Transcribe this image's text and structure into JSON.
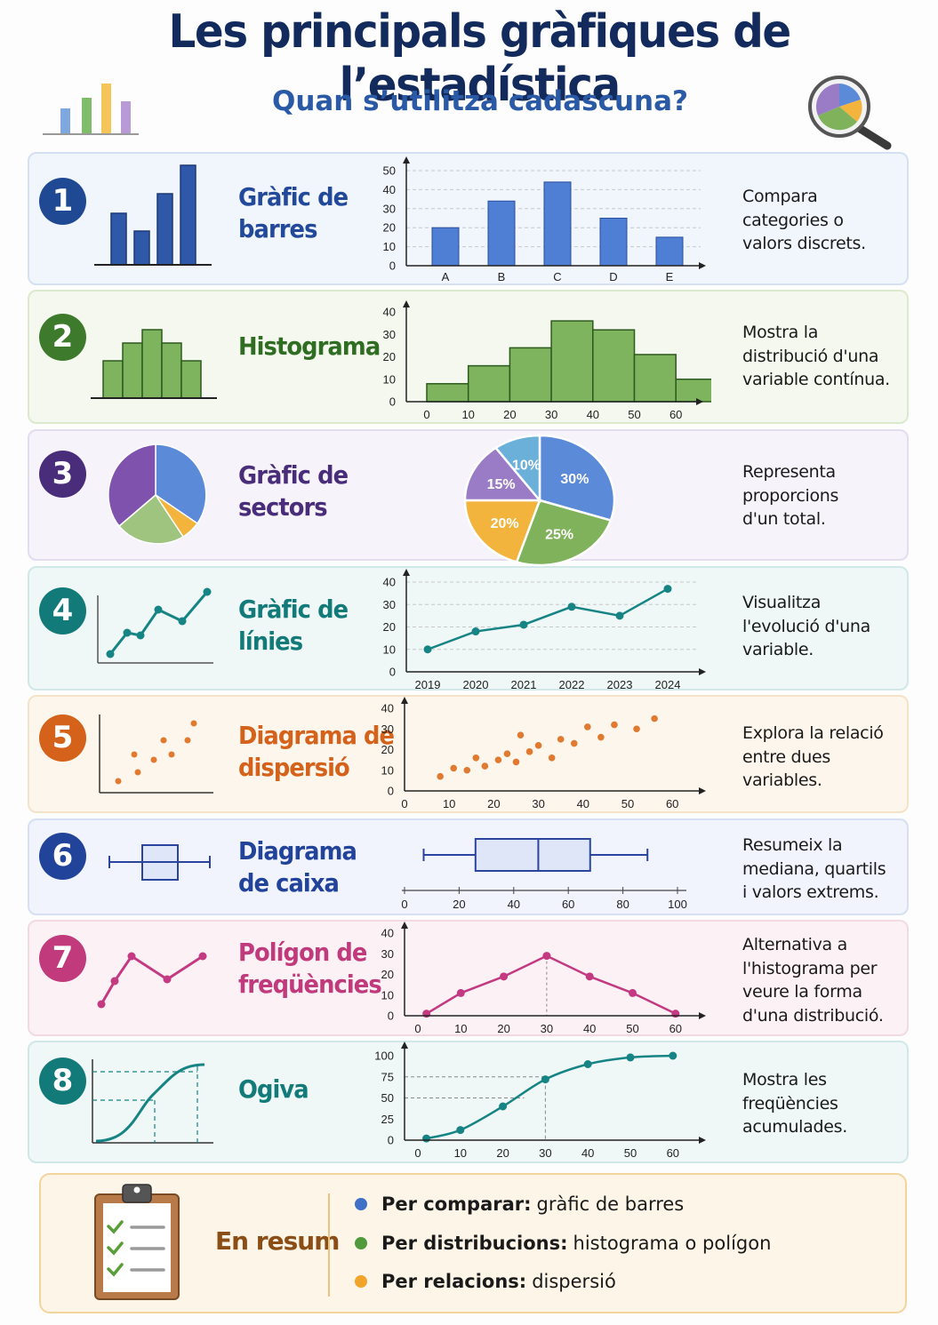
{
  "header": {
    "title": "Les principals gràfiques de l’estadística",
    "subtitle": "Quan s’utilitza cadascuna?"
  },
  "sections": [
    {
      "number": "1",
      "name_line1": "Gràfic de",
      "name_line2": "barres",
      "desc": [
        "Compara",
        "categories o",
        "valors discrets."
      ],
      "color": "#234a9a"
    },
    {
      "number": "2",
      "name_line1": "Histograma",
      "name_line2": "",
      "desc": [
        "Mostra la",
        "distribució d'una",
        "variable contínua."
      ],
      "color": "#3d7a2c"
    },
    {
      "number": "3",
      "name_line1": "Gràfic de",
      "name_line2": "sectors",
      "desc": [
        "Representa",
        "proporcions",
        "d'un total."
      ],
      "color": "#4a2d7a"
    },
    {
      "number": "4",
      "name_line1": "Gràfic de",
      "name_line2": "línies",
      "desc": [
        "Visualitza",
        "l'evolució d'una",
        "variable."
      ],
      "color": "#137a7a"
    },
    {
      "number": "5",
      "name_line1": "Diagrama de",
      "name_line2": "dispersió",
      "desc": [
        "Explora la relació",
        "entre dues",
        "variables."
      ],
      "color": "#d4621a"
    },
    {
      "number": "6",
      "name_line1": "Diagrama",
      "name_line2": "de caixa",
      "desc": [
        "Resumeix la",
        "mediana, quartils",
        "i valors extrems."
      ],
      "color": "#22439a"
    },
    {
      "number": "7",
      "name_line1": "Polígon de",
      "name_line2": "freqüències",
      "desc": [
        "Alternativa a",
        "l'histograma per",
        "veure la forma",
        "d'una distribució."
      ],
      "color": "#c03a7c"
    },
    {
      "number": "8",
      "name_line1": "Ogiva",
      "name_line2": "",
      "desc": [
        "Mostra les",
        "freqüències",
        "acumulades."
      ],
      "color": "#137a7a"
    }
  ],
  "chart_data": [
    {
      "type": "bar",
      "categories": [
        "A",
        "B",
        "C",
        "D",
        "E"
      ],
      "values": [
        20,
        34,
        44,
        25,
        15
      ],
      "ylim": [
        0,
        50
      ],
      "yticks": [
        0,
        10,
        20,
        30,
        40,
        50
      ],
      "color": "#4f7fd4"
    },
    {
      "type": "bar",
      "bins": [
        [
          0,
          10
        ],
        [
          10,
          20
        ],
        [
          20,
          30
        ],
        [
          30,
          40
        ],
        [
          40,
          50
        ],
        [
          50,
          60
        ],
        [
          60,
          70
        ]
      ],
      "values": [
        8,
        16,
        24,
        36,
        32,
        21,
        10
      ],
      "ylim": [
        0,
        40
      ],
      "yticks": [
        0,
        10,
        20,
        30,
        40
      ],
      "xticks": [
        0,
        10,
        20,
        30,
        40,
        50,
        60
      ],
      "color": "#7fb45e"
    },
    {
      "type": "pie",
      "slices": [
        {
          "label": "30%",
          "value": 30,
          "color": "#5b8ad8"
        },
        {
          "label": "25%",
          "value": 25,
          "color": "#7fb25a"
        },
        {
          "label": "20%",
          "value": 20,
          "color": "#f2b43c"
        },
        {
          "label": "15%",
          "value": 15,
          "color": "#9a7cc6"
        },
        {
          "label": "10%",
          "value": 10,
          "color": "#6bb0d8"
        }
      ]
    },
    {
      "type": "line",
      "x": [
        "2019",
        "2020",
        "2021",
        "2022",
        "2023",
        "2024"
      ],
      "values": [
        10,
        18,
        21,
        29,
        25,
        37
      ],
      "ylim": [
        0,
        40
      ],
      "yticks": [
        0,
        10,
        20,
        30,
        40
      ],
      "color": "#168484"
    },
    {
      "type": "scatter",
      "points": [
        [
          8,
          7
        ],
        [
          11,
          11
        ],
        [
          14,
          10
        ],
        [
          16,
          16
        ],
        [
          18,
          12
        ],
        [
          21,
          15
        ],
        [
          23,
          18
        ],
        [
          25,
          14
        ],
        [
          26,
          27
        ],
        [
          28,
          19
        ],
        [
          30,
          22
        ],
        [
          33,
          16
        ],
        [
          35,
          25
        ],
        [
          38,
          23
        ],
        [
          41,
          31
        ],
        [
          44,
          26
        ],
        [
          47,
          32
        ],
        [
          52,
          30
        ],
        [
          56,
          35
        ]
      ],
      "xlim": [
        0,
        60
      ],
      "ylim": [
        0,
        40
      ],
      "xticks": [
        0,
        10,
        20,
        30,
        40,
        50,
        60
      ],
      "yticks": [
        0,
        10,
        20,
        30,
        40
      ],
      "color": "#e07a30"
    },
    {
      "type": "box",
      "min": 7,
      "q1": 26,
      "median": 49,
      "q3": 68,
      "max": 89,
      "xlim": [
        0,
        100
      ],
      "xticks": [
        0,
        20,
        40,
        60,
        80,
        100
      ],
      "color": "#2a45a0"
    },
    {
      "type": "line",
      "x": [
        2,
        10,
        20,
        30,
        40,
        50,
        60
      ],
      "values": [
        1,
        11,
        19,
        29,
        19,
        11,
        1
      ],
      "xlim": [
        0,
        60
      ],
      "ylim": [
        0,
        40
      ],
      "xticks": [
        0,
        10,
        20,
        30,
        40,
        50,
        60
      ],
      "yticks": [
        0,
        10,
        20,
        30,
        40
      ],
      "color": "#c43a82"
    },
    {
      "type": "line",
      "x": [
        2,
        10,
        20,
        30,
        40,
        50,
        60
      ],
      "values": [
        2,
        12,
        40,
        72,
        90,
        98,
        100
      ],
      "xlim": [
        0,
        60
      ],
      "ylim": [
        0,
        100
      ],
      "xticks": [
        0,
        10,
        20,
        30,
        40,
        50,
        60
      ],
      "yticks": [
        0,
        25,
        50,
        75,
        100
      ],
      "color": "#168484"
    }
  ],
  "summary": {
    "title": "En resum",
    "items": [
      {
        "bold": "Per comparar:",
        "text": "gràfic de barres",
        "color": "#3f6fc6"
      },
      {
        "bold": "Per distribucions:",
        "text": "histograma o polígon",
        "color": "#4f9a3a"
      },
      {
        "bold": "Per relacions:",
        "text": "dispersió",
        "color": "#f2a42a"
      }
    ]
  }
}
